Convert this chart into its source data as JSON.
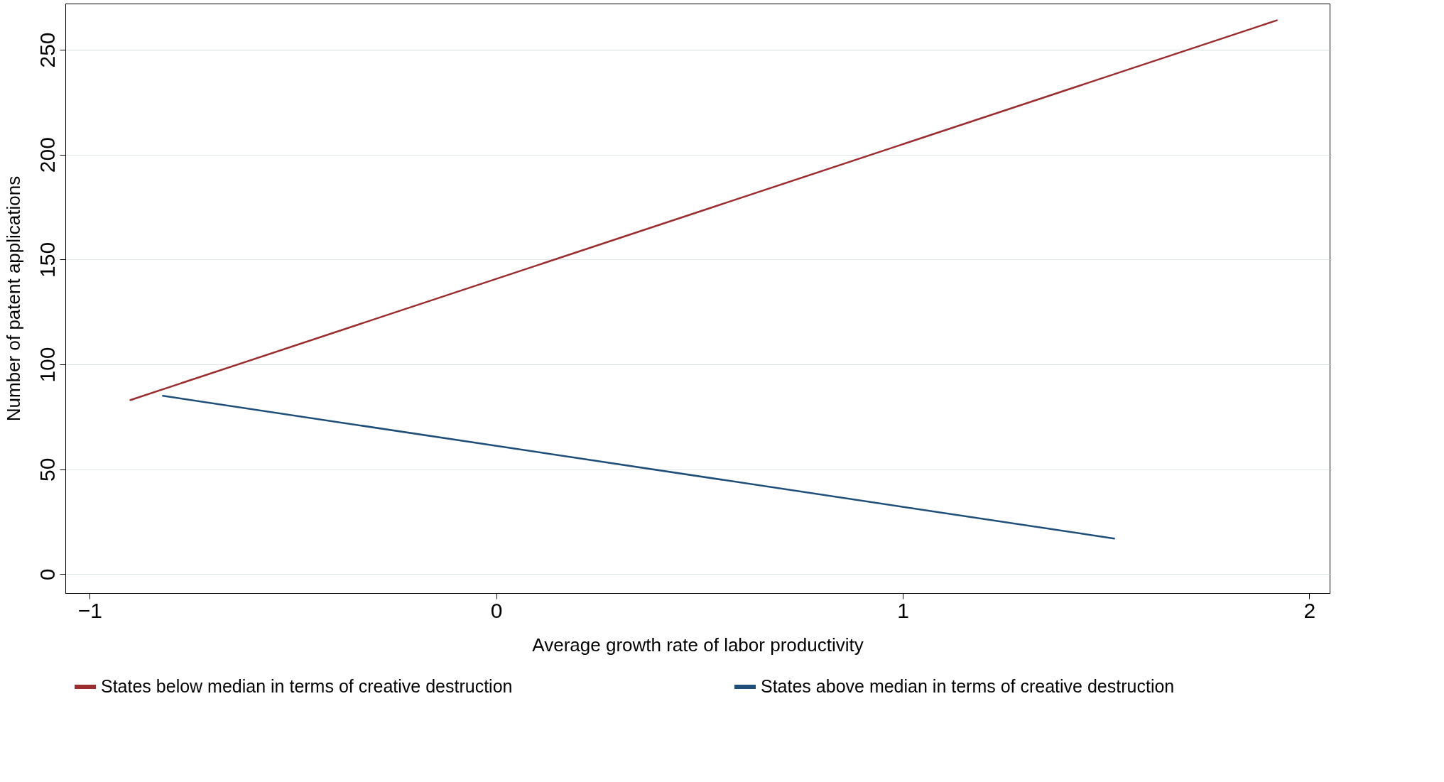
{
  "chart_data": {
    "type": "line",
    "xlabel": "Average growth rate of labor productivity",
    "ylabel": "Number of patent applications",
    "xlim": [
      -1.06,
      2.05
    ],
    "xticks": [
      -1,
      0,
      1,
      2
    ],
    "ylim": [
      -9,
      272
    ],
    "yticks": [
      0,
      50,
      100,
      150,
      200,
      250
    ],
    "grid": "y",
    "legend": "bottom",
    "line_style": "solid",
    "series": [
      {
        "name": "States below median in terms of creative destruction",
        "color": "#9b2d30",
        "x": [
          -0.9,
          1.92
        ],
        "values": [
          83,
          264
        ]
      },
      {
        "name": "States above median in terms of creative destruction",
        "color": "#1f4e79",
        "x": [
          -0.82,
          1.52
        ],
        "values": [
          85,
          17
        ]
      }
    ]
  }
}
